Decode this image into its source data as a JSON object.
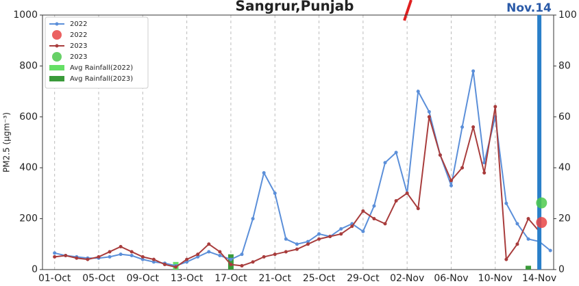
{
  "chart_data": {
    "type": "line",
    "title": "Sangrur,Punjab",
    "annotation": "Nov.14",
    "ylabel": "PM2.5 (μgm⁻³)",
    "xlim": [
      -1.1,
      45.3
    ],
    "ylim": [
      0,
      1000
    ],
    "y2lim": [
      0,
      100
    ],
    "xticks": [
      {
        "value": 0,
        "label": "01-Oct"
      },
      {
        "value": 4,
        "label": "05-Oct"
      },
      {
        "value": 8,
        "label": "09-Oct"
      },
      {
        "value": 12,
        "label": "13-Oct"
      },
      {
        "value": 16,
        "label": "17-Oct"
      },
      {
        "value": 20,
        "label": "21-Oct"
      },
      {
        "value": 24,
        "label": "25-Oct"
      },
      {
        "value": 28,
        "label": "29-Oct"
      },
      {
        "value": 32,
        "label": "02-Nov"
      },
      {
        "value": 36,
        "label": "06-Nov"
      },
      {
        "value": 40,
        "label": "10-Nov"
      },
      {
        "value": 44,
        "label": "14-Nov"
      }
    ],
    "yticks": [
      0,
      200,
      400,
      600,
      800,
      1000
    ],
    "y2ticks": [
      0,
      20,
      40,
      60,
      80,
      100
    ],
    "grid": true,
    "legend": "upper left",
    "marker_line_x": 44,
    "marker_line_color": "#2a7fc9",
    "x": [
      0,
      1,
      2,
      3,
      4,
      5,
      6,
      7,
      8,
      9,
      10,
      11,
      12,
      13,
      14,
      15,
      16,
      17,
      18,
      19,
      20,
      21,
      22,
      23,
      24,
      25,
      26,
      27,
      28,
      29,
      30,
      31,
      32,
      33,
      34,
      35,
      36,
      37,
      38,
      39,
      40,
      41,
      42,
      43,
      44,
      45
    ],
    "series": [
      {
        "name": "2022",
        "color": "#5b8fd9",
        "values": [
          65,
          55,
          50,
          45,
          45,
          50,
          60,
          55,
          40,
          30,
          25,
          15,
          30,
          50,
          70,
          55,
          40,
          60,
          200,
          380,
          300,
          120,
          100,
          110,
          140,
          130,
          160,
          180,
          150,
          250,
          420,
          460,
          300,
          700,
          620,
          450,
          330,
          560,
          780,
          420,
          600,
          260,
          180,
          120,
          110,
          75
        ]
      },
      {
        "name": "2023",
        "color": "#a83c3c",
        "values": [
          50,
          55,
          45,
          40,
          50,
          70,
          90,
          70,
          50,
          40,
          20,
          10,
          40,
          60,
          100,
          70,
          20,
          15,
          30,
          50,
          60,
          70,
          80,
          100,
          120,
          130,
          140,
          170,
          230,
          200,
          180,
          270,
          300,
          240,
          600,
          450,
          350,
          400,
          560,
          380,
          640,
          40,
          100,
          200,
          150,
          null
        ]
      }
    ],
    "points": [
      {
        "name": "2022",
        "color": "#e84545",
        "x": [
          44.2
        ],
        "values": [
          185
        ]
      },
      {
        "name": "2023",
        "color": "#4cc94c",
        "x": [
          44.2
        ],
        "values": [
          262
        ]
      }
    ],
    "bars": [
      {
        "name": "Avg Rainfall(2022)",
        "color": "#66e066",
        "axis": "y2",
        "x": [
          11
        ],
        "values": [
          3
        ]
      },
      {
        "name": "Avg Rainfall(2023)",
        "color": "#3a9a3a",
        "axis": "y2",
        "x": [
          16,
          43
        ],
        "values": [
          6,
          1.5
        ]
      }
    ]
  }
}
